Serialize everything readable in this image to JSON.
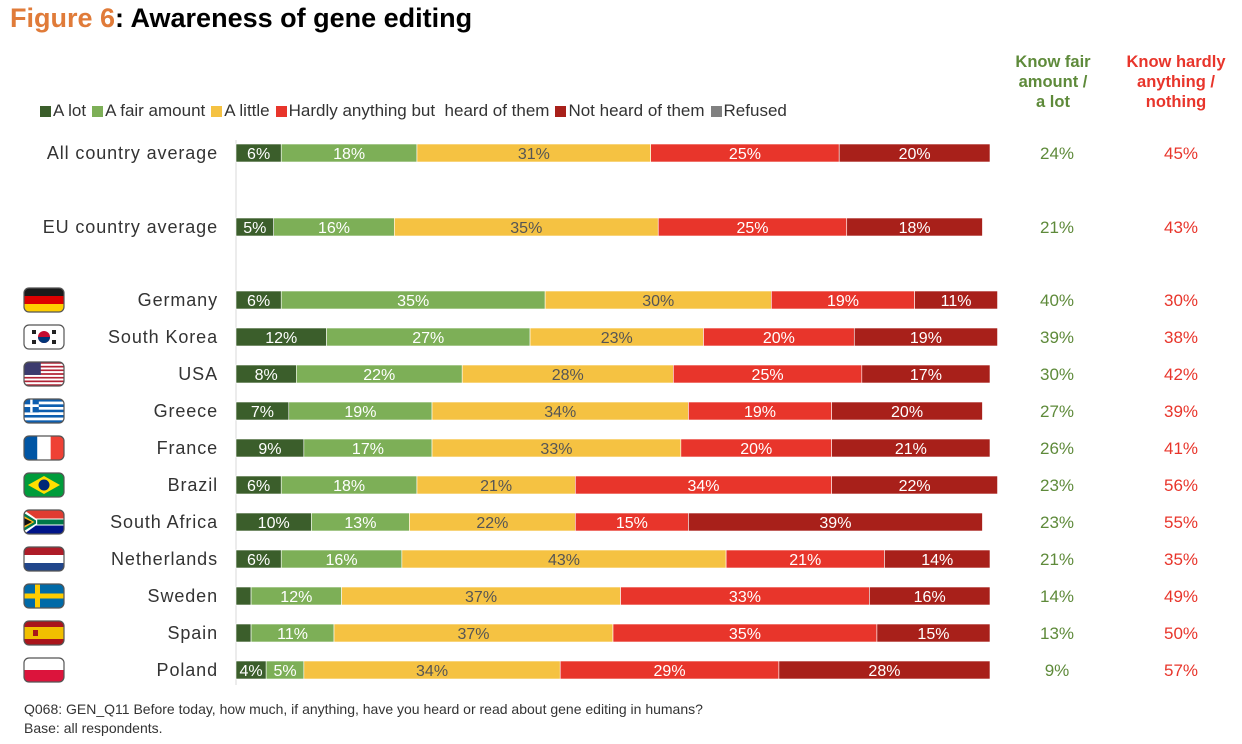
{
  "title": {
    "prefix": "Figure 6",
    "text": ": Awareness of gene editing"
  },
  "column_headers": {
    "aware": [
      "Know fair",
      "amount /",
      "a lot"
    ],
    "unaware": [
      "Know hardly",
      "anything /",
      "nothing"
    ]
  },
  "colors": {
    "a_lot": "#3B5E2B",
    "fair": "#7DAF57",
    "little": "#F5C242",
    "hardly": "#E8352B",
    "not_heard": "#A8201A",
    "refused": "#808080",
    "aware_text": "#5E8A3A",
    "unaware_text": "#E8352B",
    "title_accent": "#E07B39"
  },
  "footnote": [
    "Q068: GEN_Q11 Before today, how much, if anything,  have you heard or read about gene editing in humans?",
    "Base: all respondents."
  ],
  "chart_data": {
    "type": "bar",
    "orientation": "horizontal",
    "stacked": true,
    "xlim": [
      0,
      100
    ],
    "legend_position": "top",
    "grid": false,
    "categories": [
      "All country average",
      "EU country average",
      "Germany",
      "South Korea",
      "USA",
      "Greece",
      "France",
      "Brazil",
      "South Africa",
      "Netherlands",
      "Sweden",
      "Spain",
      "Poland"
    ],
    "flags": [
      null,
      null,
      "germany-flag",
      "south-korea-flag",
      "usa-flag",
      "greece-flag",
      "france-flag",
      "brazil-flag",
      "south-africa-flag",
      "netherlands-flag",
      "sweden-flag",
      "spain-flag",
      "poland-flag"
    ],
    "series": [
      {
        "name": "A lot",
        "color": "#3B5E2B",
        "values": [
          6,
          5,
          6,
          12,
          8,
          7,
          9,
          6,
          10,
          6,
          2,
          2,
          4
        ],
        "labels": [
          "6%",
          "5%",
          "6%",
          "12%",
          "8%",
          "7%",
          "9%",
          "6%",
          "10%",
          "6%",
          "",
          "",
          "4%"
        ]
      },
      {
        "name": "A fair amount",
        "color": "#7DAF57",
        "values": [
          18,
          16,
          35,
          27,
          22,
          19,
          17,
          18,
          13,
          16,
          12,
          11,
          5
        ],
        "labels": [
          "18%",
          "16%",
          "35%",
          "27%",
          "22%",
          "19%",
          "17%",
          "18%",
          "13%",
          "16%",
          "12%",
          "11%",
          "5%"
        ]
      },
      {
        "name": "A little",
        "color": "#F5C242",
        "values": [
          31,
          35,
          30,
          23,
          28,
          34,
          33,
          21,
          22,
          43,
          37,
          37,
          34
        ],
        "labels": [
          "31%",
          "35%",
          "30%",
          "23%",
          "28%",
          "34%",
          "33%",
          "21%",
          "22%",
          "43%",
          "37%",
          "37%",
          "34%"
        ]
      },
      {
        "name": "Hardly anything but  heard of them",
        "color": "#E8352B",
        "values": [
          25,
          25,
          19,
          20,
          25,
          19,
          20,
          34,
          15,
          21,
          33,
          35,
          29
        ],
        "labels": [
          "25%",
          "25%",
          "19%",
          "20%",
          "25%",
          "19%",
          "20%",
          "34%",
          "15%",
          "21%",
          "33%",
          "35%",
          "29%"
        ]
      },
      {
        "name": "Not heard of them",
        "color": "#A8201A",
        "values": [
          20,
          18,
          11,
          19,
          17,
          20,
          21,
          22,
          39,
          14,
          16,
          15,
          28
        ],
        "labels": [
          "20%",
          "18%",
          "11%",
          "19%",
          "17%",
          "20%",
          "21%",
          "22%",
          "39%",
          "14%",
          "16%",
          "15%",
          "28%"
        ]
      },
      {
        "name": "Refused",
        "color": "#808080",
        "values": [
          0,
          0,
          0,
          0,
          0,
          0,
          0,
          0,
          0,
          0,
          0,
          0,
          0
        ],
        "labels": [
          "",
          "",
          "",
          "",
          "",
          "",
          "",
          "",
          "",
          "",
          "",
          "",
          ""
        ]
      }
    ],
    "summary": {
      "aware": [
        "24%",
        "21%",
        "40%",
        "39%",
        "30%",
        "27%",
        "26%",
        "23%",
        "23%",
        "21%",
        "14%",
        "13%",
        "9%"
      ],
      "unaware": [
        "45%",
        "43%",
        "30%",
        "38%",
        "42%",
        "39%",
        "41%",
        "56%",
        "55%",
        "35%",
        "49%",
        "50%",
        "57%"
      ]
    }
  }
}
